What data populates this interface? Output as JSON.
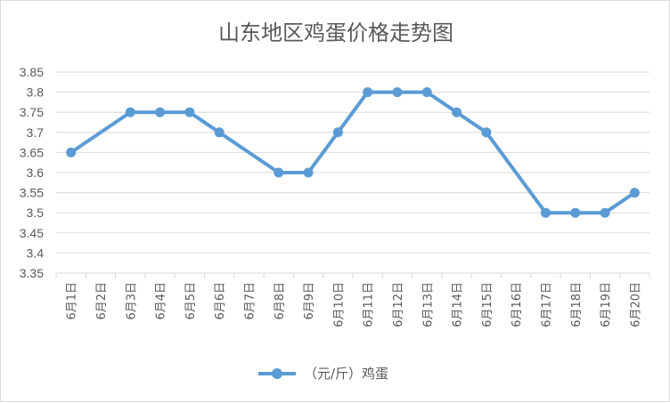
{
  "chart_data": {
    "type": "line",
    "title": "山东地区鸡蛋价格走势图",
    "xlabel": "",
    "ylabel": "",
    "categories": [
      "6月1日",
      "6月2日",
      "6月3日",
      "6月4日",
      "6月5日",
      "6月6日",
      "6月7日",
      "6月8日",
      "6月9日",
      "6月10日",
      "6月11日",
      "6月12日",
      "6月13日",
      "6月14日",
      "6月15日",
      "6月16日",
      "6月17日",
      "6月18日",
      "6月19日",
      "6月20日"
    ],
    "series": [
      {
        "name": "（元/斤）鸡蛋",
        "values": [
          3.65,
          null,
          3.75,
          3.75,
          3.75,
          3.7,
          null,
          3.6,
          3.6,
          3.7,
          3.8,
          3.8,
          3.8,
          3.75,
          3.7,
          null,
          3.5,
          3.5,
          3.5,
          3.55
        ],
        "color": "#5b9bd5"
      }
    ],
    "ylim": [
      3.35,
      3.85
    ],
    "yticks": [
      "3.35",
      "3.4",
      "3.45",
      "3.5",
      "3.55",
      "3.6",
      "3.65",
      "3.7",
      "3.75",
      "3.8",
      "3.85"
    ],
    "grid": true,
    "legend": "bottom",
    "gridColor": "#d9d9d9",
    "textColor": "#595959"
  }
}
